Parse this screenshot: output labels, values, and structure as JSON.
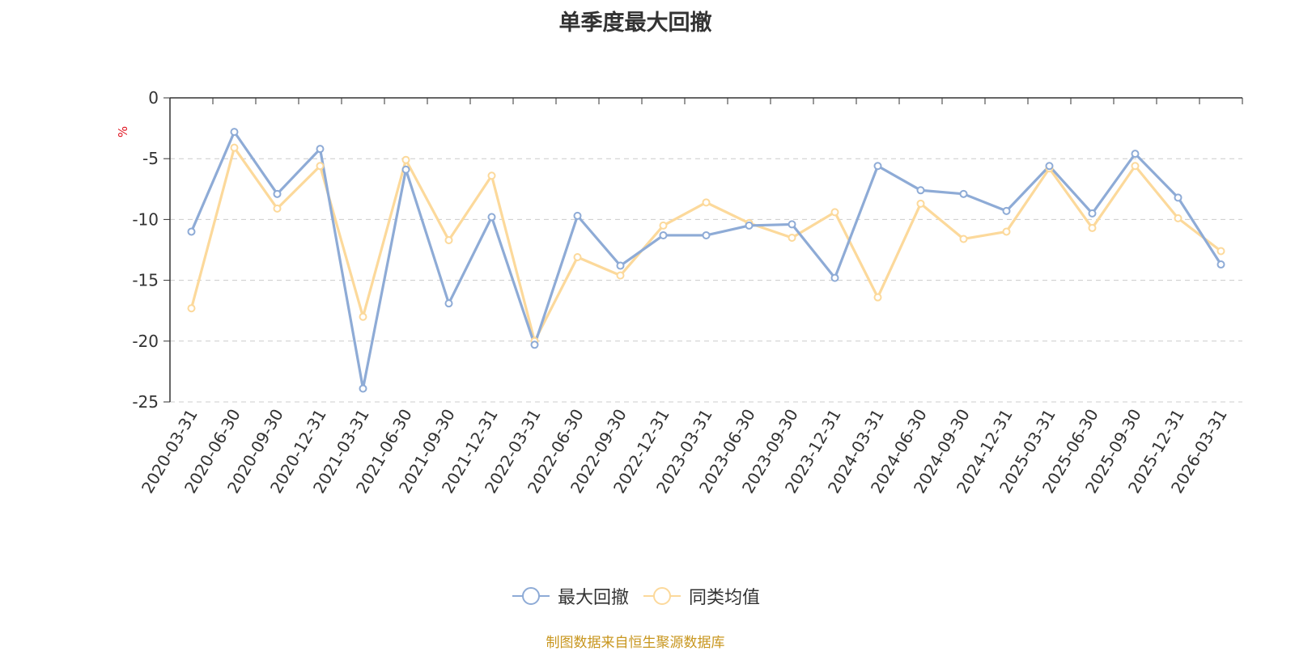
{
  "chart_data": {
    "type": "line",
    "title": "单季度最大回撤",
    "ylabel": "%",
    "ylim": [
      -25,
      0
    ],
    "yticks": [
      0,
      -5,
      -10,
      -15,
      -20,
      -25
    ],
    "categories": [
      "2020-03-31",
      "2020-06-30",
      "2020-09-30",
      "2020-12-31",
      "2021-03-31",
      "2021-06-30",
      "2021-09-30",
      "2021-12-31",
      "2022-03-31",
      "2022-06-30",
      "2022-09-30",
      "2022-12-31",
      "2023-03-31",
      "2023-06-30",
      "2023-09-30",
      "2023-12-31",
      "2024-03-31",
      "2024-06-30",
      "2024-09-30",
      "2024-12-31",
      "2025-03-31",
      "2025-06-30",
      "2025-09-30",
      "2025-12-31",
      "2026-03-31"
    ],
    "series": [
      {
        "name": "最大回撤",
        "color": "#8eabd6",
        "values": [
          -11.0,
          -2.8,
          -7.9,
          -4.2,
          -23.9,
          -5.9,
          -16.9,
          -9.8,
          -20.3,
          -9.7,
          -13.8,
          -11.3,
          -11.3,
          -10.5,
          -10.4,
          -14.8,
          -5.6,
          -7.6,
          -7.9,
          -9.3,
          -5.6,
          -9.5,
          -4.6,
          -8.2,
          -13.7
        ]
      },
      {
        "name": "同类均值",
        "color": "#fcd99b",
        "values": [
          -17.3,
          -4.1,
          -9.1,
          -5.6,
          -18.0,
          -5.1,
          -11.7,
          -6.4,
          -20.0,
          -13.1,
          -14.6,
          -10.5,
          -8.6,
          -10.3,
          -11.5,
          -9.4,
          -16.4,
          -8.7,
          -11.6,
          -11.0,
          -5.8,
          -10.7,
          -5.6,
          -9.9,
          -12.6
        ]
      }
    ],
    "grid": true,
    "legend_position": "bottom"
  },
  "footer": "制图数据来自恒生聚源数据库"
}
